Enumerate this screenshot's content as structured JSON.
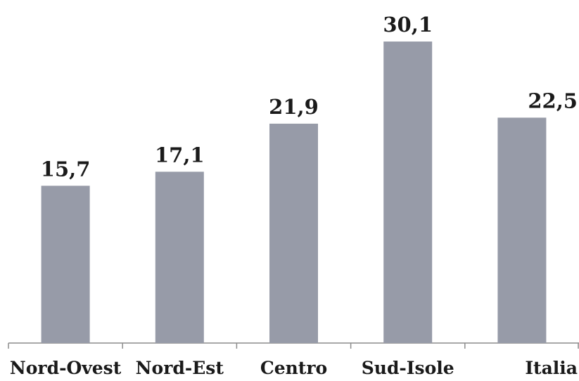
{
  "chart_data": {
    "type": "bar",
    "title": "",
    "xlabel": "",
    "ylabel": "",
    "categories": [
      "Nord-Ovest",
      "Nord-Est",
      "Centro",
      "Sud-Isole",
      "Italia"
    ],
    "values": [
      15.7,
      17.1,
      21.9,
      30.1,
      22.5
    ],
    "value_labels": [
      "15,7",
      "17,1",
      "21,9",
      "30,1",
      "22,5"
    ],
    "ylim": [
      0,
      36
    ],
    "grid": false,
    "legend": "none",
    "colors": {
      "bar": "#979ba8",
      "axis": "#8c8c8c",
      "text": "#1a1a1a"
    }
  }
}
